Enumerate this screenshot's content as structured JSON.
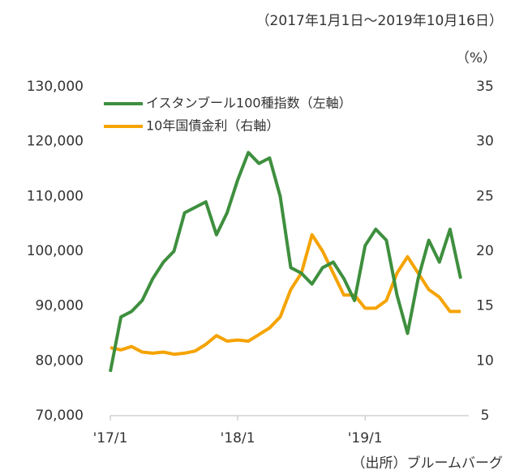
{
  "chart_data": {
    "type": "line",
    "subtitle": "（2017年1月1日～2019年10月16日）",
    "y2_label": "（%）",
    "source": "（出所）ブルームバーグ",
    "x": [
      "2017-01",
      "2017-02",
      "2017-03",
      "2017-04",
      "2017-05",
      "2017-06",
      "2017-07",
      "2017-08",
      "2017-09",
      "2017-10",
      "2017-11",
      "2017-12",
      "2018-01",
      "2018-02",
      "2018-03",
      "2018-04",
      "2018-05",
      "2018-06",
      "2018-07",
      "2018-08",
      "2018-09",
      "2018-10",
      "2018-11",
      "2018-12",
      "2019-01",
      "2019-02",
      "2019-03",
      "2019-04",
      "2019-05",
      "2019-06",
      "2019-07",
      "2019-08",
      "2019-09",
      "2019-10"
    ],
    "xlim": [
      "2017-01",
      "2019-10"
    ],
    "xticks": [
      {
        "value": "2017-01",
        "label": "'17/1"
      },
      {
        "value": "2018-01",
        "label": "'18/1"
      },
      {
        "value": "2019-01",
        "label": "'19/1"
      }
    ],
    "ylim": [
      70000,
      130000
    ],
    "yticks": [
      {
        "value": 70000,
        "label": "70,000"
      },
      {
        "value": 80000,
        "label": "80,000"
      },
      {
        "value": 90000,
        "label": "90,000"
      },
      {
        "value": 100000,
        "label": "100,000"
      },
      {
        "value": 110000,
        "label": "110,000"
      },
      {
        "value": 120000,
        "label": "120,000"
      },
      {
        "value": 130000,
        "label": "130,000"
      }
    ],
    "y2lim": [
      5,
      35
    ],
    "y2ticks": [
      5,
      10,
      15,
      20,
      25,
      30,
      35
    ],
    "legend": "top-left",
    "series": [
      {
        "name": "イスタンブール100種指数（左軸）",
        "color": "#3e8f3e",
        "values": [
          78000,
          88000,
          89000,
          91000,
          95000,
          98000,
          100000,
          107000,
          108000,
          109000,
          103000,
          107000,
          113000,
          118000,
          116000,
          117000,
          110000,
          97000,
          96000,
          94000,
          97000,
          98000,
          95000,
          91000,
          101000,
          104000,
          102000,
          92000,
          85000,
          95000,
          102000,
          98000,
          104000,
          95000
        ]
      },
      {
        "name": "10年国債金利（右軸）",
        "color": "#f5a300",
        "axis": "y2",
        "values": [
          11.2,
          11.0,
          11.3,
          10.8,
          10.7,
          10.8,
          10.6,
          10.7,
          10.9,
          11.5,
          12.3,
          11.8,
          11.9,
          11.8,
          12.4,
          13.0,
          14.0,
          16.5,
          18.0,
          21.5,
          20.0,
          18.0,
          16.0,
          16.0,
          14.8,
          14.8,
          15.5,
          18.0,
          19.5,
          18.0,
          16.5,
          15.8,
          14.5,
          14.5
        ]
      }
    ]
  }
}
